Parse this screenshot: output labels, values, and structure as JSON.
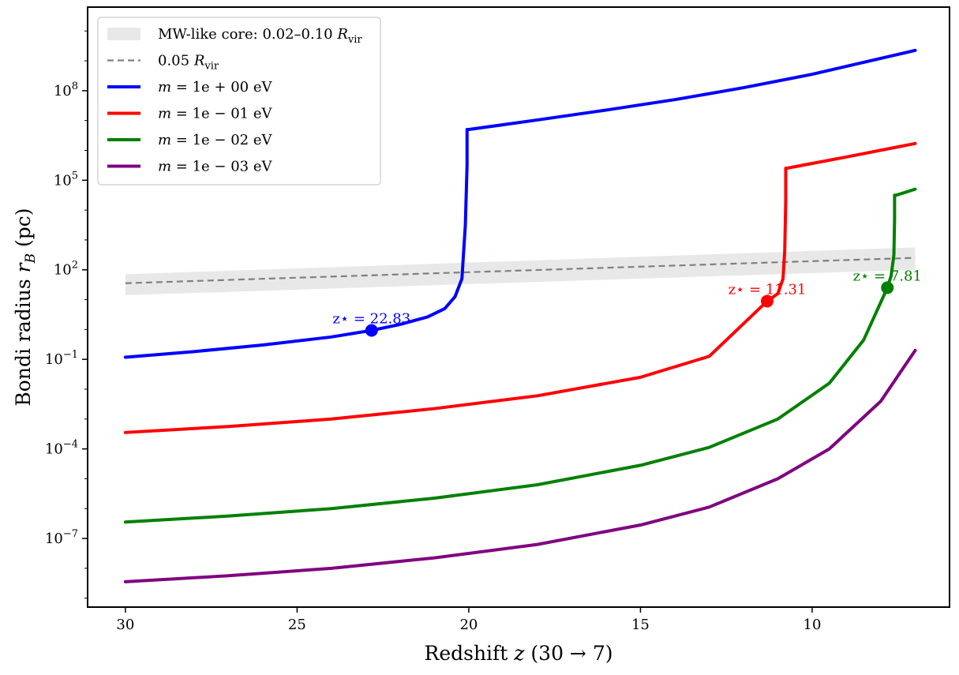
{
  "chart_data": {
    "type": "line",
    "xlabel": "Redshift z (30 → 7)",
    "ylabel": "Bondi radius r_B (pc)",
    "xlim": [
      31.1,
      6.0
    ],
    "ylim_log10": [
      -9.3,
      10.8
    ],
    "yscale": "log",
    "x_ticks": [
      "30",
      "25",
      "20",
      "15",
      "10"
    ],
    "y_ticks": [
      {
        "exp": 8,
        "label_base": "10",
        "label_exp": "8"
      },
      {
        "exp": 5,
        "label_base": "10",
        "label_exp": "5"
      },
      {
        "exp": 2,
        "label_base": "10",
        "label_exp": "2"
      },
      {
        "exp": -1,
        "label_base": "10",
        "label_exp": "−1"
      },
      {
        "exp": -4,
        "label_base": "10",
        "label_exp": "−4"
      },
      {
        "exp": -7,
        "label_base": "10",
        "label_exp": "−7"
      }
    ],
    "grid": false,
    "legend_position": "top-left",
    "band": {
      "name": "MW-like core: 0.02–0.10 R_vir",
      "color": "#d9d9d9",
      "x": [
        30,
        7
      ],
      "lower_log10": [
        1.15,
        2.0
      ],
      "upper_log10": [
        1.85,
        2.75
      ]
    },
    "reference_line": {
      "name": "0.05 R_vir",
      "color": "#808080",
      "x": [
        30,
        7
      ],
      "log10_y": [
        1.55,
        2.4
      ]
    },
    "series": [
      {
        "name": "m = 1e+00 eV",
        "color": "#0000ff",
        "x": [
          30,
          28,
          26,
          24,
          22.83,
          22,
          21.2,
          20.7,
          20.4,
          20.2,
          20.1,
          20.05,
          20.05,
          20.0,
          18,
          16,
          14,
          12,
          10,
          8.5,
          7
        ],
        "log10_y": [
          -0.93,
          -0.74,
          -0.52,
          -0.25,
          -0.03,
          0.17,
          0.42,
          0.7,
          1.1,
          1.7,
          3.5,
          5.5,
          6.7,
          6.7,
          7.02,
          7.35,
          7.7,
          8.1,
          8.55,
          8.95,
          9.35
        ]
      },
      {
        "name": "m = 1e-01 eV",
        "color": "#ff0000",
        "x": [
          30,
          27,
          24,
          21,
          18,
          15,
          13,
          11.31,
          11.0,
          10.85,
          10.8,
          10.77,
          10.77,
          10.75,
          9,
          7
        ],
        "log10_y": [
          -3.45,
          -3.25,
          -3.0,
          -2.65,
          -2.22,
          -1.6,
          -0.9,
          0.95,
          1.2,
          1.7,
          2.6,
          4.3,
          5.4,
          5.4,
          5.78,
          6.23
        ]
      },
      {
        "name": "m = 1e-02 eV",
        "color": "#008000",
        "x": [
          30,
          27,
          24,
          21,
          18,
          15,
          13,
          11,
          9.5,
          8.5,
          7.81,
          7.7,
          7.62,
          7.6,
          7.6,
          7.55,
          7
        ],
        "log10_y": [
          -6.45,
          -6.25,
          -6.0,
          -5.65,
          -5.2,
          -4.55,
          -3.95,
          -3.0,
          -1.8,
          -0.35,
          1.4,
          1.8,
          2.5,
          3.7,
          4.5,
          4.5,
          4.7
        ]
      },
      {
        "name": "m = 1e-03 eV",
        "color": "#800080",
        "x": [
          30,
          27,
          24,
          21,
          18,
          15,
          13,
          11,
          9.5,
          8,
          7
        ],
        "log10_y": [
          -8.45,
          -8.25,
          -8.0,
          -7.65,
          -7.2,
          -6.55,
          -5.95,
          -5.0,
          -4.0,
          -2.4,
          -0.7
        ]
      }
    ],
    "markers": [
      {
        "series": 0,
        "x": 22.83,
        "log10_y": -0.03,
        "label": "z⋆ = 22.83",
        "color": "#0000ff"
      },
      {
        "series": 1,
        "x": 11.31,
        "log10_y": 0.95,
        "label": "z⋆ = 11.31",
        "color": "#ff0000"
      },
      {
        "series": 2,
        "x": 7.81,
        "log10_y": 1.4,
        "label": "z⋆ = 7.81",
        "color": "#008000"
      }
    ],
    "legend": [
      {
        "kind": "band",
        "label": "MW-like core: 0.02–0.10 R_vir",
        "text": "MW-like core: 0.02–0.10",
        "sym": "R",
        "sub": "vir",
        "color": "#d9d9d9"
      },
      {
        "kind": "dashed",
        "label": "0.05 R_vir",
        "text": "0.05",
        "sym": "R",
        "sub": "vir",
        "color": "#808080"
      },
      {
        "kind": "line",
        "label": "m = 1e+00 eV",
        "text": "m = 1e + 00 eV",
        "color": "#0000ff"
      },
      {
        "kind": "line",
        "label": "m = 1e-01 eV",
        "text": "m = 1e − 01 eV",
        "color": "#ff0000"
      },
      {
        "kind": "line",
        "label": "m = 1e-02 eV",
        "text": "m = 1e − 02 eV",
        "color": "#008000"
      },
      {
        "kind": "line",
        "label": "m = 1e-03 eV",
        "text": "m = 1e − 03 eV",
        "color": "#800080"
      }
    ]
  }
}
